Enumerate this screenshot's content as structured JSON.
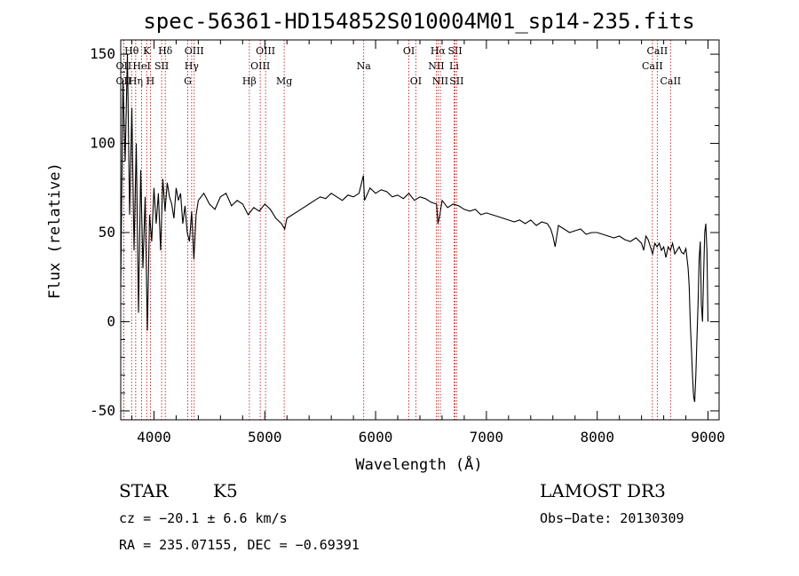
{
  "chart_data": {
    "type": "line",
    "title": "spec-56361-HD154852S010004M01_sp14-235.fits",
    "xlabel": "Wavelength (Å)",
    "ylabel": "Flux (relative)",
    "xlim": [
      3700,
      9100
    ],
    "ylim": [
      -55,
      158
    ],
    "x_ticks": [
      4000,
      5000,
      6000,
      7000,
      8000,
      9000
    ],
    "y_ticks": [
      -50,
      0,
      50,
      100,
      150
    ],
    "series": [
      {
        "name": "flux",
        "x": [
          3700,
          3720,
          3740,
          3760,
          3780,
          3800,
          3820,
          3840,
          3860,
          3880,
          3900,
          3920,
          3940,
          3960,
          3980,
          4000,
          4020,
          4040,
          4060,
          4080,
          4100,
          4120,
          4140,
          4160,
          4180,
          4200,
          4220,
          4240,
          4260,
          4280,
          4300,
          4320,
          4340,
          4360,
          4380,
          4400,
          4450,
          4500,
          4550,
          4600,
          4650,
          4700,
          4750,
          4800,
          4850,
          4900,
          4950,
          5000,
          5050,
          5100,
          5150,
          5180,
          5200,
          5250,
          5300,
          5350,
          5400,
          5450,
          5500,
          5550,
          5600,
          5650,
          5700,
          5750,
          5800,
          5850,
          5890,
          5900,
          5950,
          6000,
          6050,
          6100,
          6150,
          6200,
          6250,
          6300,
          6350,
          6400,
          6450,
          6500,
          6550,
          6563,
          6580,
          6600,
          6650,
          6700,
          6750,
          6800,
          6850,
          6900,
          6950,
          7000,
          7050,
          7100,
          7150,
          7200,
          7250,
          7300,
          7350,
          7400,
          7450,
          7500,
          7550,
          7580,
          7600,
          7620,
          7650,
          7700,
          7750,
          7800,
          7850,
          7900,
          7950,
          8000,
          8050,
          8100,
          8150,
          8200,
          8250,
          8300,
          8350,
          8400,
          8420,
          8440,
          8460,
          8480,
          8500,
          8520,
          8540,
          8560,
          8580,
          8600,
          8620,
          8640,
          8660,
          8680,
          8700,
          8720,
          8740,
          8760,
          8780,
          8800,
          8820,
          8830,
          8840,
          8850,
          8860,
          8870,
          8880,
          8890,
          8900,
          8910,
          8920,
          8930,
          8940,
          8950,
          8960,
          8970,
          8980,
          8990,
          9000
        ],
        "y": [
          20,
          135,
          90,
          150,
          60,
          120,
          40,
          100,
          5,
          85,
          30,
          70,
          -5,
          60,
          45,
          75,
          55,
          72,
          40,
          80,
          62,
          78,
          70,
          66,
          58,
          75,
          68,
          72,
          55,
          65,
          50,
          45,
          62,
          35,
          60,
          68,
          72,
          66,
          63,
          70,
          72,
          65,
          68,
          66,
          60,
          64,
          62,
          66,
          63,
          58,
          55,
          52,
          58,
          60,
          62,
          64,
          66,
          68,
          70,
          69,
          72,
          70,
          68,
          71,
          70,
          72,
          82,
          68,
          75,
          72,
          74,
          73,
          70,
          71,
          69,
          72,
          68,
          70,
          69,
          67,
          66,
          55,
          60,
          68,
          64,
          66,
          65,
          63,
          62,
          63,
          60,
          61,
          60,
          59,
          58,
          57,
          56,
          57,
          55,
          57,
          54,
          56,
          55,
          52,
          48,
          42,
          54,
          52,
          50,
          51,
          52,
          49,
          50,
          50,
          49,
          48,
          47,
          48,
          46,
          45,
          47,
          44,
          40,
          48,
          46,
          42,
          38,
          44,
          42,
          44,
          40,
          42,
          36,
          42,
          40,
          44,
          38,
          40,
          42,
          39,
          38,
          41,
          30,
          20,
          0,
          -15,
          -30,
          -42,
          -45,
          -30,
          -10,
          10,
          35,
          45,
          10,
          0,
          25,
          50,
          55,
          40,
          0
        ]
      }
    ],
    "lines": [
      {
        "label": "Hθ",
        "x": 3798,
        "row": 1
      },
      {
        "label": "OII",
        "x": 3727,
        "row": 2
      },
      {
        "label": "OII",
        "x": 3727,
        "row": 3
      },
      {
        "label": "Hη",
        "x": 3835,
        "row": 3
      },
      {
        "label": "HeI",
        "x": 3889,
        "row": 2
      },
      {
        "label": "K",
        "x": 3934,
        "row": 1
      },
      {
        "label": "SII",
        "x": 4069,
        "row": 2
      },
      {
        "label": "H",
        "x": 3968,
        "row": 3
      },
      {
        "label": "Hδ",
        "x": 4102,
        "row": 1
      },
      {
        "label": "OIII",
        "x": 4363,
        "row": 1
      },
      {
        "label": "Hγ",
        "x": 4340,
        "row": 2
      },
      {
        "label": "G",
        "x": 4305,
        "row": 3
      },
      {
        "label": "Hβ",
        "x": 4861,
        "row": 3
      },
      {
        "label": "OIII",
        "x": 5007,
        "row": 1
      },
      {
        "label": "OIII",
        "x": 4959,
        "row": 2
      },
      {
        "label": "Mg",
        "x": 5175,
        "row": 3
      },
      {
        "label": "Na",
        "x": 5893,
        "row": 2
      },
      {
        "label": "OI",
        "x": 6300,
        "row": 1
      },
      {
        "label": "OI",
        "x": 6363,
        "row": 3
      },
      {
        "label": "Hα",
        "x": 6563,
        "row": 1
      },
      {
        "label": "NII",
        "x": 6548,
        "row": 2
      },
      {
        "label": "NII",
        "x": 6584,
        "row": 3
      },
      {
        "label": "SII",
        "x": 6717,
        "row": 1
      },
      {
        "label": "Li",
        "x": 6708,
        "row": 2
      },
      {
        "label": "SII",
        "x": 6731,
        "row": 3
      },
      {
        "label": "CaII",
        "x": 8542,
        "row": 1
      },
      {
        "label": "CaII",
        "x": 8498,
        "row": 2
      },
      {
        "label": "CaII",
        "x": 8662,
        "row": 3
      }
    ]
  },
  "info": {
    "object_class": "STAR",
    "subclass": "K5",
    "survey": "LAMOST DR3",
    "cz": "cz = −20.1 ± 6.6 km/s",
    "obs_date": "Obs−Date: 20130309",
    "coords": "RA = 235.07155, DEC =  −0.69391"
  }
}
